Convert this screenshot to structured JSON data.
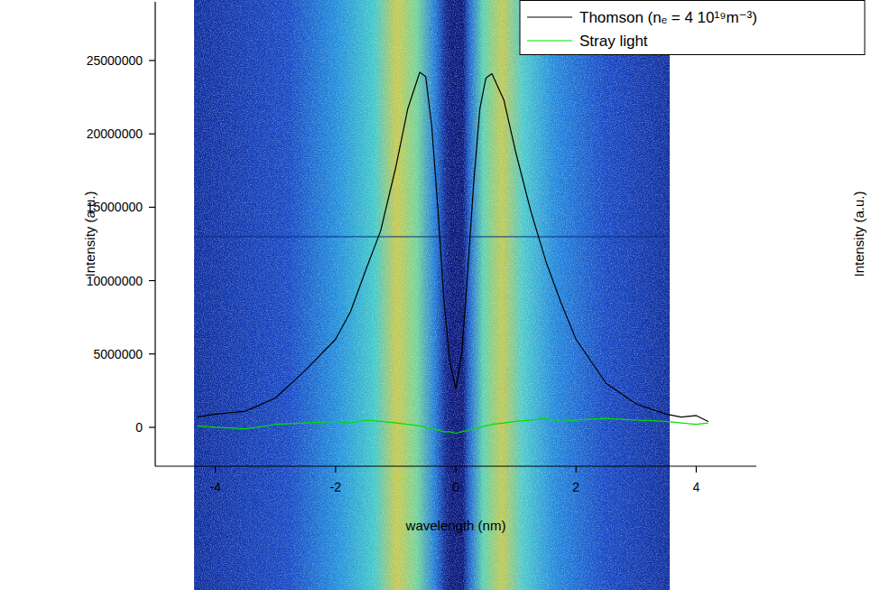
{
  "chart_data": {
    "type": "line",
    "x_label": "wavelength (nm)",
    "y_label": "Intensity (a.u.)",
    "y2_label": "Intensity (a.u.)",
    "xlim": [
      -5,
      5
    ],
    "xticks": [
      -4,
      -2,
      0,
      2,
      4
    ],
    "ylim": [
      -2650000,
      29000000
    ],
    "yticks": [
      0,
      5000000,
      10000000,
      15000000,
      20000000,
      25000000
    ],
    "legend": "top-right",
    "x": [
      -4.3,
      -4,
      -3.5,
      -3,
      -2.5,
      -2,
      -1.75,
      -1.5,
      -1.25,
      -1,
      -0.8,
      -0.6,
      -0.5,
      -0.4,
      -0.3,
      -0.2,
      -0.1,
      0,
      0.1,
      0.2,
      0.3,
      0.4,
      0.5,
      0.6,
      0.8,
      1,
      1.25,
      1.5,
      1.75,
      2,
      2.5,
      3,
      3.5,
      3.75,
      4,
      4.2
    ],
    "series": [
      {
        "name": "Thomson (nₑ = 4 10¹⁹m⁻³)",
        "color": "#000000",
        "values": [
          700000,
          900000,
          1100000,
          2000000,
          3900000,
          6000000,
          7900000,
          10700000,
          13400000,
          17700000,
          21700000,
          24200000,
          23900000,
          20500000,
          15000000,
          8800000,
          4500000,
          2600000,
          5100000,
          10700000,
          16800000,
          21700000,
          23800000,
          24100000,
          22300000,
          18700000,
          14700000,
          11300000,
          8500000,
          6000000,
          3000000,
          1600000,
          900000,
          700000,
          800000,
          400000
        ]
      },
      {
        "name": "Stray light",
        "color": "#00e000",
        "values": [
          100000,
          0,
          -100000,
          200000,
          300000,
          400000,
          300000,
          500000,
          400000,
          300000,
          200000,
          100000,
          0,
          -100000,
          -200000,
          -300000,
          -300000,
          -400000,
          -300000,
          -200000,
          -100000,
          0,
          100000,
          200000,
          300000,
          400000,
          500000,
          600000,
          400000,
          500000,
          600000,
          500000,
          400000,
          300000,
          200000,
          300000
        ]
      }
    ]
  }
}
